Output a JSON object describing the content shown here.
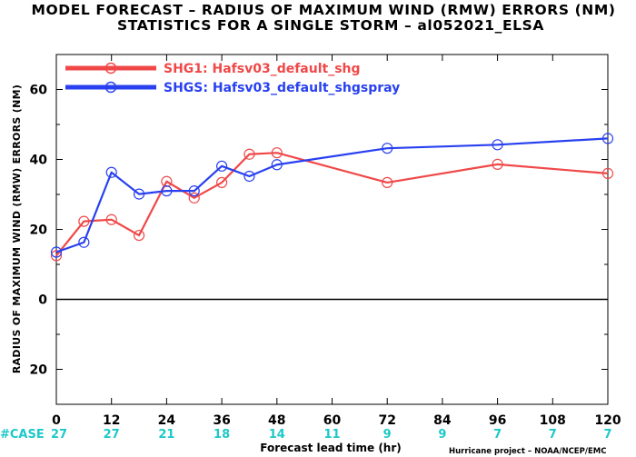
{
  "chart_data": {
    "type": "line",
    "title": "MODEL FORECAST – RADIUS OF MAXIMUM WIND (RMW) ERRORS (NM)",
    "subtitle": "STATISTICS FOR A SINGLE STORM – al052021_ELSA",
    "xlabel": "Forecast lead time (hr)",
    "ylabel": "RADIUS OF MAXIMUM WIND (RMW) ERRORS (NM)",
    "xlim": [
      0,
      120
    ],
    "ylim": [
      -30,
      70
    ],
    "xticks": [
      0,
      12,
      24,
      36,
      48,
      60,
      72,
      84,
      96,
      108,
      120
    ],
    "yticks": [
      -20,
      0,
      20,
      40,
      60
    ],
    "ytick_labels": [
      "20",
      "0",
      "20",
      "40",
      "60"
    ],
    "legend_position": "top-left",
    "series": [
      {
        "name": "SHG1: Hafsv03_default_shg",
        "color": "#f04848",
        "x": [
          0,
          6,
          12,
          18,
          24,
          30,
          36,
          42,
          48,
          72,
          96,
          120
        ],
        "values": [
          12.5,
          22.3,
          22.8,
          18.3,
          33.7,
          29,
          33.4,
          41.5,
          41.9,
          33.4,
          38.6,
          36
        ]
      },
      {
        "name": "SHGS: Hafsv03_default_shgspray",
        "color": "#2840f0",
        "x": [
          0,
          6,
          12,
          18,
          24,
          30,
          36,
          42,
          48,
          72,
          96,
          120
        ],
        "values": [
          13.5,
          16.3,
          36.3,
          30.1,
          31,
          31,
          38.1,
          35.2,
          38.5,
          43.2,
          44.2,
          46
        ]
      }
    ],
    "case_label": "#CASE",
    "case_color": "#1ec8c8",
    "case_x": [
      0,
      12,
      24,
      36,
      48,
      60,
      72,
      84,
      96,
      108,
      120
    ],
    "case_counts": [
      "27",
      "27",
      "21",
      "18",
      "14",
      "11",
      "9",
      "9",
      "7",
      "7",
      "7"
    ],
    "credit": "Hurricane project – NOAA/NCEP/EMC"
  }
}
